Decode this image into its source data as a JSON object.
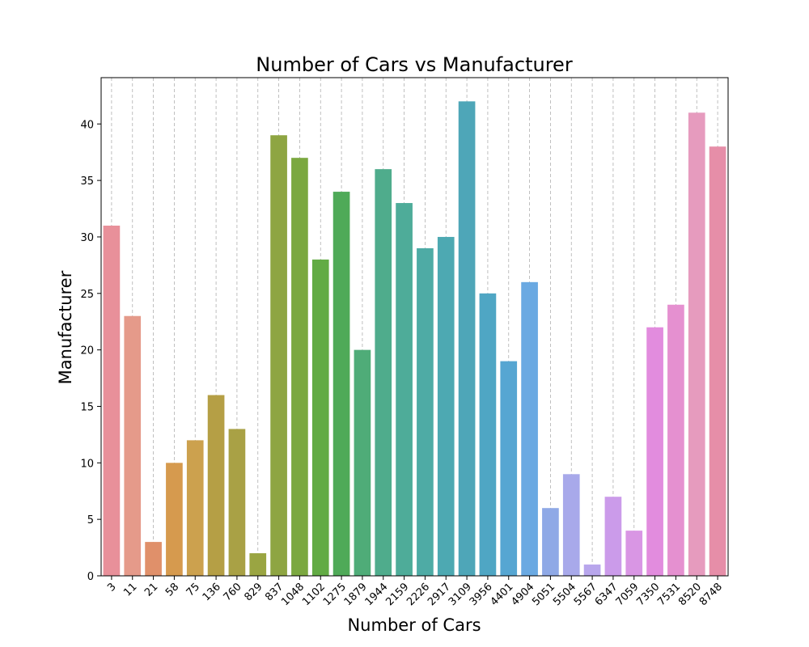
{
  "chart_data": {
    "type": "bar",
    "title": "Number of Cars vs Manufacturer",
    "xlabel": "Number of Cars",
    "ylabel": "Manufacturer",
    "categories": [
      "3",
      "11",
      "21",
      "58",
      "75",
      "136",
      "760",
      "829",
      "837",
      "1048",
      "1102",
      "1275",
      "1879",
      "1944",
      "2159",
      "2226",
      "2917",
      "3109",
      "3956",
      "4401",
      "4904",
      "5051",
      "5504",
      "5567",
      "6347",
      "7059",
      "7350",
      "7531",
      "8520",
      "8748"
    ],
    "values": [
      31,
      23,
      3,
      10,
      12,
      16,
      13,
      2,
      39,
      37,
      28,
      34,
      20,
      36,
      33,
      29,
      30,
      42,
      25,
      19,
      26,
      6,
      9,
      1,
      7,
      4,
      22,
      24,
      41,
      38
    ],
    "colors": [
      "#e8909a",
      "#e59a8a",
      "#e0906a",
      "#d69a4e",
      "#cca14e",
      "#b59f45",
      "#a9a145",
      "#9aa542",
      "#8ea542",
      "#7ba840",
      "#62ab44",
      "#4faa58",
      "#4fac78",
      "#4fac8c",
      "#4eac99",
      "#4eaba5",
      "#4da9b2",
      "#4ea6b8",
      "#4fa6c4",
      "#56a6d2",
      "#6aa9e2",
      "#8fa9e6",
      "#a8a9ea",
      "#b8a6ec",
      "#cb9bea",
      "#d996e4",
      "#e28cde",
      "#e590d0",
      "#e69bbe",
      "#e68ea8"
    ],
    "yticks": [
      0,
      5,
      10,
      15,
      20,
      25,
      30,
      35,
      40
    ],
    "ylim": [
      0,
      44.1
    ],
    "grid": "vertical dashed",
    "legend": "none"
  }
}
